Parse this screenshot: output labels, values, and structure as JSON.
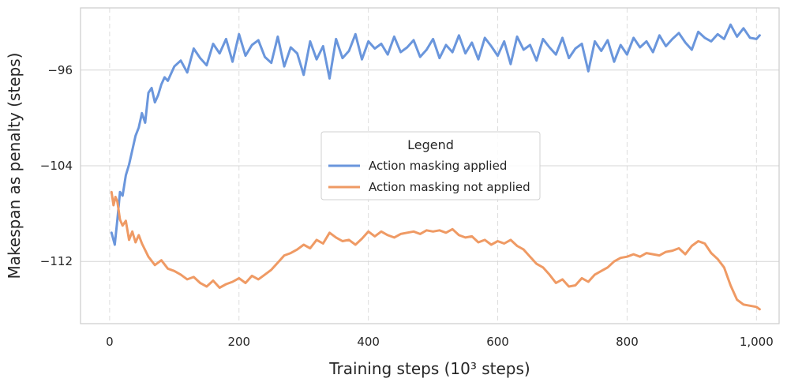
{
  "chart_data": {
    "type": "line",
    "title": "",
    "xlabel": "Training steps (10³ steps)",
    "ylabel": "Makespan as penalty (steps)",
    "xlim": [
      -45,
      1035
    ],
    "ylim": [
      -117.2,
      -90.8
    ],
    "xticks": [
      0,
      200,
      400,
      600,
      800,
      1000
    ],
    "xtick_labels": [
      "0",
      "200",
      "400",
      "600",
      "800",
      "1,000"
    ],
    "yticks": [
      -96,
      -104,
      -112
    ],
    "ytick_labels": [
      "−96",
      "−104",
      "−112"
    ],
    "grid": true,
    "legend": {
      "title": "Legend",
      "position": "center-right"
    },
    "series": [
      {
        "name": "Action masking applied",
        "color": "#6a96dc",
        "x": [
          3,
          8,
          12,
          16,
          20,
          25,
          30,
          35,
          40,
          45,
          50,
          55,
          60,
          65,
          70,
          75,
          80,
          85,
          90,
          95,
          100,
          110,
          120,
          130,
          140,
          150,
          160,
          170,
          180,
          190,
          200,
          210,
          220,
          230,
          240,
          250,
          260,
          270,
          280,
          290,
          300,
          310,
          320,
          330,
          340,
          350,
          360,
          370,
          380,
          390,
          400,
          410,
          420,
          430,
          440,
          450,
          460,
          470,
          480,
          490,
          500,
          510,
          520,
          530,
          540,
          550,
          560,
          570,
          580,
          590,
          600,
          610,
          620,
          630,
          640,
          650,
          660,
          670,
          680,
          690,
          700,
          710,
          720,
          730,
          740,
          750,
          760,
          770,
          780,
          790,
          800,
          810,
          820,
          830,
          840,
          850,
          860,
          870,
          880,
          890,
          900,
          910,
          920,
          930,
          940,
          950,
          960,
          970,
          980,
          990,
          1000,
          1005
        ],
        "values": [
          -109.6,
          -110.6,
          -108.5,
          -106.2,
          -106.5,
          -104.8,
          -103.9,
          -102.7,
          -101.5,
          -100.8,
          -99.6,
          -100.4,
          -97.9,
          -97.5,
          -98.7,
          -98.1,
          -97.2,
          -96.6,
          -96.9,
          -96.3,
          -95.7,
          -95.2,
          -96.2,
          -94.2,
          -95.0,
          -95.6,
          -93.8,
          -94.6,
          -93.4,
          -95.3,
          -93.0,
          -94.8,
          -93.9,
          -93.5,
          -94.9,
          -95.4,
          -93.2,
          -95.7,
          -94.1,
          -94.6,
          -96.4,
          -93.6,
          -95.1,
          -94.0,
          -96.7,
          -93.4,
          -95.0,
          -94.4,
          -93.0,
          -95.1,
          -93.6,
          -94.2,
          -93.8,
          -94.7,
          -93.2,
          -94.5,
          -94.1,
          -93.5,
          -94.9,
          -94.3,
          -93.4,
          -95.0,
          -93.9,
          -94.5,
          -93.1,
          -94.6,
          -93.7,
          -95.1,
          -93.3,
          -94.0,
          -94.8,
          -93.6,
          -95.5,
          -93.2,
          -94.3,
          -93.9,
          -95.2,
          -93.4,
          -94.1,
          -94.7,
          -93.3,
          -95.0,
          -94.2,
          -93.8,
          -96.1,
          -93.6,
          -94.4,
          -93.5,
          -95.3,
          -93.9,
          -94.7,
          -93.3,
          -94.1,
          -93.6,
          -94.5,
          -93.1,
          -94.0,
          -93.4,
          -92.9,
          -93.7,
          -94.3,
          -92.8,
          -93.3,
          -93.6,
          -93.0,
          -93.4,
          -92.2,
          -93.2,
          -92.5,
          -93.3,
          -93.4,
          -93.1
        ]
      },
      {
        "name": "Action masking not applied",
        "color": "#ef9a64",
        "x": [
          3,
          6,
          9,
          12,
          16,
          20,
          25,
          30,
          35,
          40,
          45,
          50,
          60,
          70,
          80,
          90,
          100,
          110,
          120,
          130,
          140,
          150,
          160,
          170,
          180,
          190,
          200,
          210,
          220,
          230,
          240,
          250,
          260,
          270,
          280,
          290,
          300,
          310,
          320,
          330,
          340,
          350,
          360,
          370,
          380,
          390,
          400,
          410,
          420,
          430,
          440,
          450,
          460,
          470,
          480,
          490,
          500,
          510,
          520,
          530,
          540,
          550,
          560,
          570,
          580,
          590,
          600,
          610,
          620,
          630,
          640,
          650,
          660,
          670,
          680,
          690,
          700,
          710,
          720,
          730,
          740,
          750,
          760,
          770,
          780,
          790,
          800,
          810,
          820,
          830,
          840,
          850,
          860,
          870,
          880,
          890,
          900,
          910,
          920,
          930,
          940,
          950,
          960,
          970,
          980,
          990,
          1000,
          1005
        ],
        "values": [
          -106.2,
          -107.3,
          -106.6,
          -107.0,
          -108.5,
          -109.0,
          -108.6,
          -110.2,
          -109.5,
          -110.4,
          -109.8,
          -110.5,
          -111.6,
          -112.3,
          -111.9,
          -112.6,
          -112.8,
          -113.1,
          -113.5,
          -113.3,
          -113.8,
          -114.1,
          -113.6,
          -114.2,
          -113.9,
          -113.7,
          -113.4,
          -113.8,
          -113.2,
          -113.5,
          -113.1,
          -112.7,
          -112.1,
          -111.5,
          -111.3,
          -111.0,
          -110.6,
          -110.9,
          -110.2,
          -110.5,
          -109.6,
          -110.0,
          -110.3,
          -110.2,
          -110.6,
          -110.1,
          -109.5,
          -109.9,
          -109.5,
          -109.8,
          -110.0,
          -109.7,
          -109.6,
          -109.5,
          -109.7,
          -109.4,
          -109.5,
          -109.4,
          -109.6,
          -109.3,
          -109.8,
          -110.0,
          -109.9,
          -110.4,
          -110.2,
          -110.6,
          -110.3,
          -110.5,
          -110.2,
          -110.7,
          -111.0,
          -111.6,
          -112.2,
          -112.5,
          -113.1,
          -113.8,
          -113.5,
          -114.1,
          -114.0,
          -113.4,
          -113.7,
          -113.1,
          -112.8,
          -112.5,
          -112.0,
          -111.7,
          -111.6,
          -111.4,
          -111.6,
          -111.3,
          -111.4,
          -111.5,
          -111.2,
          -111.1,
          -110.9,
          -111.4,
          -110.7,
          -110.3,
          -110.5,
          -111.3,
          -111.8,
          -112.5,
          -114.0,
          -115.2,
          -115.6,
          -115.7,
          -115.8,
          -116.0
        ]
      }
    ]
  }
}
